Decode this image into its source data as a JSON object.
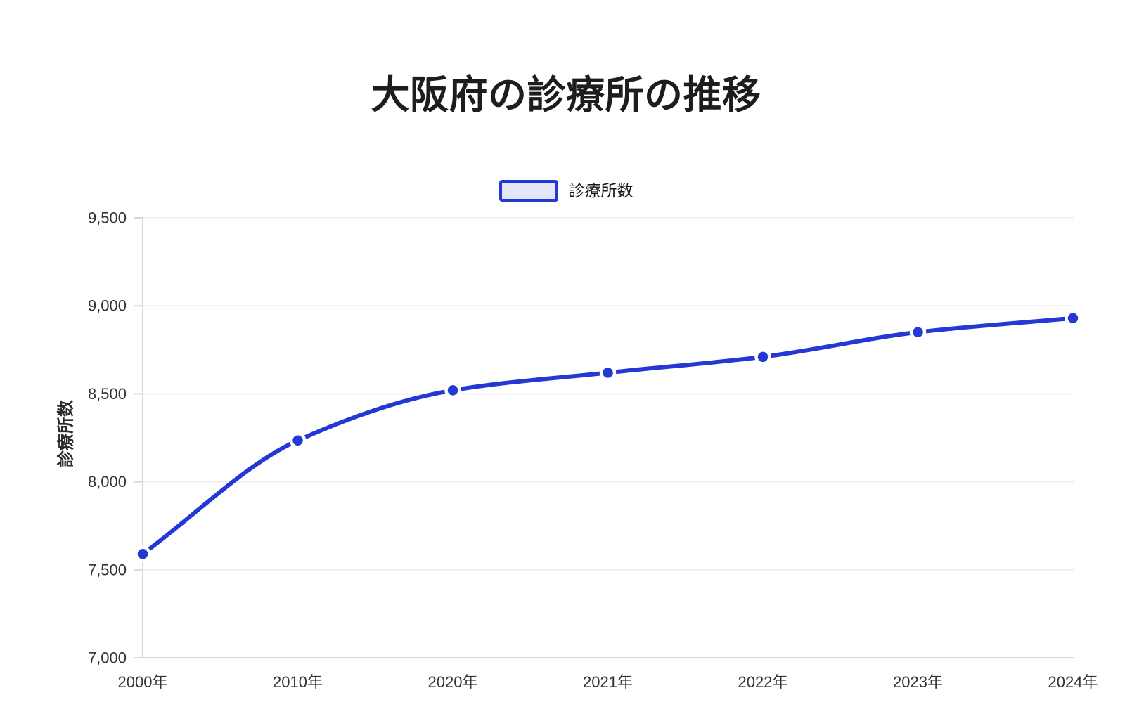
{
  "title": "大阪府の診療所の推移",
  "legend": {
    "label": "診療所数"
  },
  "y_axis": {
    "title": "診療所数",
    "min": 7000,
    "max": 9500,
    "step": 500,
    "tick_labels": [
      "7,000",
      "7,500",
      "8,000",
      "8,500",
      "9,000",
      "9,500"
    ]
  },
  "x_axis": {
    "labels": [
      "2000年",
      "2010年",
      "2020年",
      "2021年",
      "2022年",
      "2023年",
      "2024年"
    ]
  },
  "chart_data": {
    "type": "line",
    "title": "大阪府の診療所の推移",
    "categories": [
      "2000年",
      "2010年",
      "2020年",
      "2021年",
      "2022年",
      "2023年",
      "2024年"
    ],
    "series": [
      {
        "name": "診療所数",
        "values": [
          7590,
          8235,
          8520,
          8620,
          8710,
          8850,
          8930
        ]
      }
    ],
    "xlabel": "",
    "ylabel": "診療所数",
    "ylim": [
      7000,
      9500
    ],
    "ytick_step": 500,
    "grid": true,
    "legend_position": "top",
    "line_smoothing": "monotone",
    "point_style": "filled-circle-white-ring"
  },
  "colors": {
    "line": "#2338d4",
    "point_fill": "#2338d4",
    "point_ring": "#ffffff",
    "legend_fill": "#e4e7fa",
    "grid": "#ededed",
    "axis": "#d7d7d7",
    "tick_text": "#333333",
    "title_text": "#1d1d1d",
    "background": "#ffffff"
  }
}
